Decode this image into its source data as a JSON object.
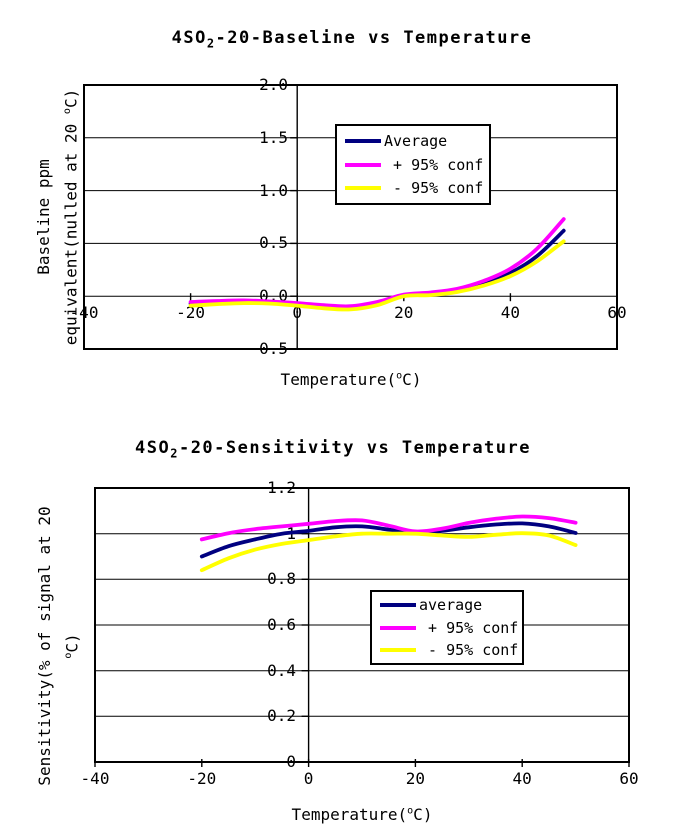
{
  "accent_colors": {
    "average": "#000080",
    "plus_95_conf": "#FF00FF",
    "minus_95_conf": "#FFFF00"
  },
  "chart_data": [
    {
      "type": "line",
      "title_prefix": "4SO",
      "title_sub": "2",
      "title_suffix": "-20-Baseline vs Temperature",
      "xlabel_prefix": "Temperature(",
      "xlabel_sup": "o",
      "xlabel_suffix": "C)",
      "ylabel_line1": "Baseline ppm",
      "ylabel_line2_prefix": "equivalent(nulled at 20 ",
      "ylabel_line2_sup": "o",
      "ylabel_line2_suffix": "C)",
      "xlim": [
        -40,
        60
      ],
      "ylim": [
        -0.5,
        2.0
      ],
      "grid": "on",
      "legend_position": "inside-upper-middle",
      "xticks": [
        "-40",
        "-20",
        "0",
        "20",
        "40",
        "60"
      ],
      "xtick_values": [
        -40,
        -20,
        0,
        20,
        40,
        60
      ],
      "yticks": [
        "2.0",
        "1.5",
        "1.0",
        "0.5",
        "0.0",
        "-0.5"
      ],
      "ytick_values": [
        2.0,
        1.5,
        1.0,
        0.5,
        0.0,
        -0.5
      ],
      "x": [
        -20,
        -15,
        -10,
        -5,
        0,
        5,
        10,
        15,
        20,
        25,
        30,
        35,
        40,
        45,
        50
      ],
      "series": [
        {
          "name": "Average",
          "color": "#000080",
          "values": [
            -0.07,
            -0.055,
            -0.05,
            -0.06,
            -0.08,
            -0.1,
            -0.11,
            -0.07,
            0.005,
            0.02,
            0.05,
            0.12,
            0.22,
            0.38,
            0.62
          ]
        },
        {
          "name": "+ 95% conf",
          "color": "#FF00FF",
          "values": [
            -0.055,
            -0.045,
            -0.04,
            -0.05,
            -0.065,
            -0.085,
            -0.095,
            -0.055,
            0.015,
            0.035,
            0.07,
            0.145,
            0.26,
            0.45,
            0.73
          ]
        },
        {
          "name": "- 95% conf",
          "color": "#FFFF00",
          "values": [
            -0.09,
            -0.075,
            -0.065,
            -0.07,
            -0.09,
            -0.115,
            -0.125,
            -0.085,
            0.0,
            0.01,
            0.04,
            0.1,
            0.19,
            0.33,
            0.52
          ]
        }
      ],
      "legend": [
        {
          "label": "Average",
          "color": "#000080"
        },
        {
          "label": " + 95% conf",
          "color": "#FF00FF"
        },
        {
          "label": " - 95% conf",
          "color": "#FFFF00"
        }
      ]
    },
    {
      "type": "line",
      "title_prefix": "4SO",
      "title_sub": "2",
      "title_suffix": "-20-Sensitivity vs Temperature",
      "xlabel_prefix": "Temperature(",
      "xlabel_sup": "o",
      "xlabel_suffix": "C)",
      "ylabel_line1": "Sensitivity(% of signal at 20",
      "ylabel_line2_prefix": "",
      "ylabel_line2_sup": "o",
      "ylabel_line2_suffix": "C)",
      "xlim": [
        -40,
        60
      ],
      "ylim": [
        0,
        1.2
      ],
      "grid": "on",
      "legend_position": "inside-middle-right",
      "xticks": [
        "-40",
        "-20",
        "0",
        "20",
        "40",
        "60"
      ],
      "xtick_values": [
        -40,
        -20,
        0,
        20,
        40,
        60
      ],
      "yticks": [
        "1.2",
        "1",
        "0.8",
        "0.6",
        "0.4",
        "0.2",
        "0"
      ],
      "ytick_values": [
        1.2,
        1.0,
        0.8,
        0.6,
        0.4,
        0.2,
        0
      ],
      "x": [
        -20,
        -15,
        -10,
        -5,
        0,
        5,
        10,
        15,
        20,
        25,
        30,
        35,
        40,
        45,
        50
      ],
      "series": [
        {
          "name": "average",
          "color": "#000080",
          "values": [
            0.9,
            0.945,
            0.975,
            1.0,
            1.012,
            1.028,
            1.032,
            1.018,
            1.003,
            1.012,
            1.028,
            1.04,
            1.045,
            1.032,
            1.003
          ]
        },
        {
          "name": "+ 95% conf",
          "color": "#FF00FF",
          "values": [
            0.975,
            1.002,
            1.02,
            1.032,
            1.043,
            1.055,
            1.058,
            1.035,
            1.01,
            1.022,
            1.047,
            1.065,
            1.075,
            1.068,
            1.048
          ]
        },
        {
          "name": "- 95% conf",
          "color": "#FFFF00",
          "values": [
            0.84,
            0.892,
            0.93,
            0.955,
            0.972,
            0.988,
            1.0,
            1.0,
            1.0,
            0.992,
            0.986,
            0.995,
            1.002,
            0.992,
            0.95
          ]
        }
      ],
      "legend": [
        {
          "label": "average",
          "color": "#000080"
        },
        {
          "label": " + 95% conf",
          "color": "#FF00FF"
        },
        {
          "label": " - 95% conf",
          "color": "#FFFF00"
        }
      ]
    }
  ]
}
